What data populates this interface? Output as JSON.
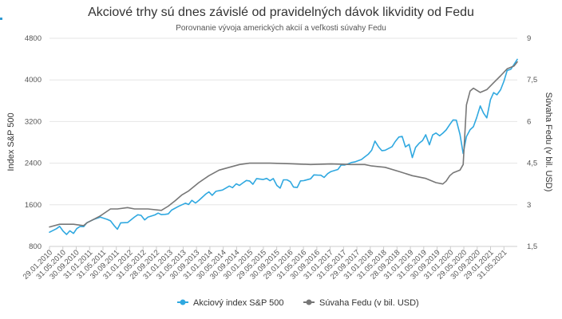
{
  "chart_data": {
    "type": "line",
    "title": "Akciové trhy sú dnes závislé od pravidelných dávok likvidity od Fedu",
    "subtitle": "Porovnanie vývoja amerických akcií a veľkosti súvahy Fedu",
    "y_left": {
      "label": "Index S&P 500",
      "min": 800,
      "max": 4800,
      "ticks": [
        800,
        1600,
        2400,
        3200,
        4000,
        4800
      ]
    },
    "y_right": {
      "label": "Súvaha Fedu (v bil. USD)",
      "min": 1.5,
      "max": 9,
      "ticks": [
        "1,5",
        "3",
        "4,5",
        "6",
        "7,5",
        "9"
      ]
    },
    "x_range": [
      2010.08,
      2021.58
    ],
    "x_tick_labels": [
      "29.01.2010",
      "31.05.2010",
      "30.09.2010",
      "31.01.2011",
      "31.05.2011",
      "30.09.2011",
      "31.01.2012",
      "31.05.2012",
      "28.09.2012",
      "31.01.2013",
      "31.05.2013",
      "30.09.2013",
      "31.01.2014",
      "30.05.2014",
      "30.09.2014",
      "30.01.2015",
      "29.05.2015",
      "30.09.2015",
      "29.01.2016",
      "31.05.2016",
      "30.09.2016",
      "31.01.2017",
      "31.05.2017",
      "29.09.2017",
      "31.01.2018",
      "31.05.2018",
      "28.09.2018",
      "31.01.2019",
      "31.05.2019",
      "30.09.2019",
      "31.01.2020",
      "29.05.2020",
      "30.09.2020",
      "29.01.2021",
      "31.05.2021"
    ],
    "legend_position": "bottom-center",
    "grid": "horizontal",
    "series": [
      {
        "name": "Akciový index S&P 500",
        "axis": "left",
        "color": "#2fa8e0",
        "points": [
          [
            2010.08,
            1073
          ],
          [
            2010.25,
            1140
          ],
          [
            2010.33,
            1186
          ],
          [
            2010.42,
            1089
          ],
          [
            2010.5,
            1030
          ],
          [
            2010.58,
            1100
          ],
          [
            2010.67,
            1050
          ],
          [
            2010.75,
            1141
          ],
          [
            2010.83,
            1183
          ],
          [
            2010.92,
            1180
          ],
          [
            2011.0,
            1257
          ],
          [
            2011.17,
            1320
          ],
          [
            2011.33,
            1363
          ],
          [
            2011.5,
            1320
          ],
          [
            2011.58,
            1292
          ],
          [
            2011.67,
            1200
          ],
          [
            2011.75,
            1131
          ],
          [
            2011.83,
            1253
          ],
          [
            2012.0,
            1258
          ],
          [
            2012.17,
            1366
          ],
          [
            2012.25,
            1408
          ],
          [
            2012.33,
            1398
          ],
          [
            2012.42,
            1310
          ],
          [
            2012.5,
            1362
          ],
          [
            2012.67,
            1406
          ],
          [
            2012.75,
            1440
          ],
          [
            2012.83,
            1412
          ],
          [
            2012.92,
            1416
          ],
          [
            2013.0,
            1426
          ],
          [
            2013.08,
            1498
          ],
          [
            2013.25,
            1569
          ],
          [
            2013.42,
            1631
          ],
          [
            2013.5,
            1606
          ],
          [
            2013.58,
            1686
          ],
          [
            2013.67,
            1633
          ],
          [
            2013.75,
            1682
          ],
          [
            2013.92,
            1806
          ],
          [
            2014.0,
            1848
          ],
          [
            2014.08,
            1783
          ],
          [
            2014.17,
            1859
          ],
          [
            2014.33,
            1884
          ],
          [
            2014.42,
            1924
          ],
          [
            2014.5,
            1960
          ],
          [
            2014.58,
            1930
          ],
          [
            2014.67,
            2003
          ],
          [
            2014.75,
            1972
          ],
          [
            2014.83,
            2018
          ],
          [
            2014.92,
            2067
          ],
          [
            2015.0,
            2059
          ],
          [
            2015.08,
            1995
          ],
          [
            2015.17,
            2104
          ],
          [
            2015.33,
            2086
          ],
          [
            2015.42,
            2107
          ],
          [
            2015.5,
            2063
          ],
          [
            2015.58,
            2104
          ],
          [
            2015.67,
            1972
          ],
          [
            2015.75,
            1920
          ],
          [
            2015.83,
            2079
          ],
          [
            2015.92,
            2080
          ],
          [
            2016.0,
            2044
          ],
          [
            2016.08,
            1940
          ],
          [
            2016.17,
            1932
          ],
          [
            2016.25,
            2060
          ],
          [
            2016.33,
            2065
          ],
          [
            2016.5,
            2099
          ],
          [
            2016.58,
            2174
          ],
          [
            2016.67,
            2170
          ],
          [
            2016.75,
            2168
          ],
          [
            2016.83,
            2126
          ],
          [
            2016.92,
            2199
          ],
          [
            2017.0,
            2239
          ],
          [
            2017.17,
            2279
          ],
          [
            2017.25,
            2364
          ],
          [
            2017.33,
            2363
          ],
          [
            2017.42,
            2384
          ],
          [
            2017.5,
            2412
          ],
          [
            2017.58,
            2423
          ],
          [
            2017.75,
            2471
          ],
          [
            2017.83,
            2519
          ],
          [
            2017.92,
            2575
          ],
          [
            2018.0,
            2648
          ],
          [
            2018.08,
            2824
          ],
          [
            2018.17,
            2714
          ],
          [
            2018.25,
            2641
          ],
          [
            2018.33,
            2648
          ],
          [
            2018.5,
            2718
          ],
          [
            2018.58,
            2816
          ],
          [
            2018.67,
            2902
          ],
          [
            2018.75,
            2914
          ],
          [
            2018.83,
            2712
          ],
          [
            2018.92,
            2760
          ],
          [
            2019.0,
            2507
          ],
          [
            2019.08,
            2704
          ],
          [
            2019.17,
            2784
          ],
          [
            2019.25,
            2834
          ],
          [
            2019.33,
            2946
          ],
          [
            2019.42,
            2752
          ],
          [
            2019.5,
            2942
          ],
          [
            2019.58,
            2980
          ],
          [
            2019.67,
            2926
          ],
          [
            2019.75,
            2977
          ],
          [
            2019.83,
            3038
          ],
          [
            2019.92,
            3141
          ],
          [
            2020.0,
            3231
          ],
          [
            2020.08,
            3226
          ],
          [
            2020.17,
            2954
          ],
          [
            2020.25,
            2585
          ],
          [
            2020.33,
            2912
          ],
          [
            2020.42,
            3044
          ],
          [
            2020.5,
            3100
          ],
          [
            2020.58,
            3271
          ],
          [
            2020.67,
            3500
          ],
          [
            2020.75,
            3363
          ],
          [
            2020.83,
            3270
          ],
          [
            2020.92,
            3622
          ],
          [
            2021.0,
            3756
          ],
          [
            2021.08,
            3714
          ],
          [
            2021.17,
            3811
          ],
          [
            2021.25,
            3973
          ],
          [
            2021.33,
            4181
          ],
          [
            2021.42,
            4204
          ],
          [
            2021.5,
            4297
          ],
          [
            2021.58,
            4395
          ]
        ]
      },
      {
        "name": "Súvaha Fedu (v bil. USD)",
        "axis": "right",
        "color": "#777777",
        "points": [
          [
            2010.08,
            2.2
          ],
          [
            2010.33,
            2.3
          ],
          [
            2010.67,
            2.3
          ],
          [
            2010.92,
            2.25
          ],
          [
            2011.0,
            2.35
          ],
          [
            2011.33,
            2.6
          ],
          [
            2011.58,
            2.85
          ],
          [
            2011.75,
            2.85
          ],
          [
            2012.0,
            2.9
          ],
          [
            2012.17,
            2.85
          ],
          [
            2012.5,
            2.85
          ],
          [
            2012.83,
            2.8
          ],
          [
            2013.0,
            2.95
          ],
          [
            2013.17,
            3.15
          ],
          [
            2013.33,
            3.35
          ],
          [
            2013.5,
            3.5
          ],
          [
            2013.75,
            3.8
          ],
          [
            2014.0,
            4.05
          ],
          [
            2014.25,
            4.25
          ],
          [
            2014.5,
            4.35
          ],
          [
            2014.75,
            4.45
          ],
          [
            2015.0,
            4.5
          ],
          [
            2015.5,
            4.5
          ],
          [
            2016.0,
            4.48
          ],
          [
            2016.5,
            4.45
          ],
          [
            2017.0,
            4.47
          ],
          [
            2017.5,
            4.45
          ],
          [
            2017.83,
            4.45
          ],
          [
            2018.0,
            4.4
          ],
          [
            2018.33,
            4.35
          ],
          [
            2018.67,
            4.2
          ],
          [
            2019.0,
            4.05
          ],
          [
            2019.33,
            3.95
          ],
          [
            2019.58,
            3.8
          ],
          [
            2019.75,
            3.75
          ],
          [
            2019.83,
            3.85
          ],
          [
            2019.92,
            4.05
          ],
          [
            2020.0,
            4.15
          ],
          [
            2020.17,
            4.25
          ],
          [
            2020.25,
            4.45
          ],
          [
            2020.33,
            6.6
          ],
          [
            2020.42,
            7.1
          ],
          [
            2020.5,
            7.2
          ],
          [
            2020.67,
            7.05
          ],
          [
            2020.83,
            7.15
          ],
          [
            2021.0,
            7.4
          ],
          [
            2021.17,
            7.65
          ],
          [
            2021.33,
            7.9
          ],
          [
            2021.5,
            8.0
          ],
          [
            2021.58,
            8.15
          ]
        ]
      }
    ]
  }
}
